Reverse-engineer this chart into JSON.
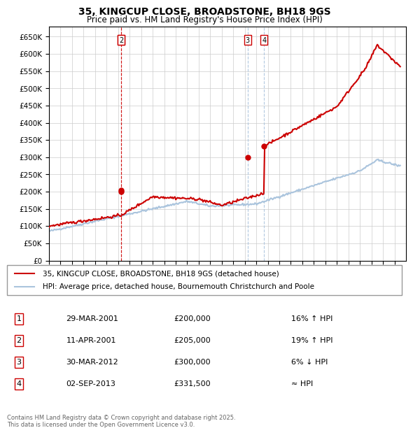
{
  "title": "35, KINGCUP CLOSE, BROADSTONE, BH18 9GS",
  "subtitle": "Price paid vs. HM Land Registry's House Price Index (HPI)",
  "legend_line1": "35, KINGCUP CLOSE, BROADSTONE, BH18 9GS (detached house)",
  "legend_line2": "HPI: Average price, detached house, Bournemouth Christchurch and Poole",
  "footer": "Contains HM Land Registry data © Crown copyright and database right 2025.\nThis data is licensed under the Open Government Licence v3.0.",
  "transactions": [
    {
      "id": 1,
      "date": "29-MAR-2001",
      "date_num": 2001.24,
      "price": 200000,
      "label": "16% ↑ HPI"
    },
    {
      "id": 2,
      "date": "11-APR-2001",
      "date_num": 2001.27,
      "price": 205000,
      "label": "19% ↑ HPI"
    },
    {
      "id": 3,
      "date": "30-MAR-2012",
      "date_num": 2012.24,
      "price": 300000,
      "label": "6% ↓ HPI"
    },
    {
      "id": 4,
      "date": "02-SEP-2013",
      "date_num": 2013.67,
      "price": 331500,
      "label": "≈ HPI"
    }
  ],
  "hpi_color": "#aac4dd",
  "price_color": "#cc0000",
  "background_color": "#ffffff",
  "grid_color": "#cccccc",
  "ylim": [
    0,
    680000
  ],
  "ytick_step": 50000,
  "xmin": 1995,
  "xmax": 2026
}
